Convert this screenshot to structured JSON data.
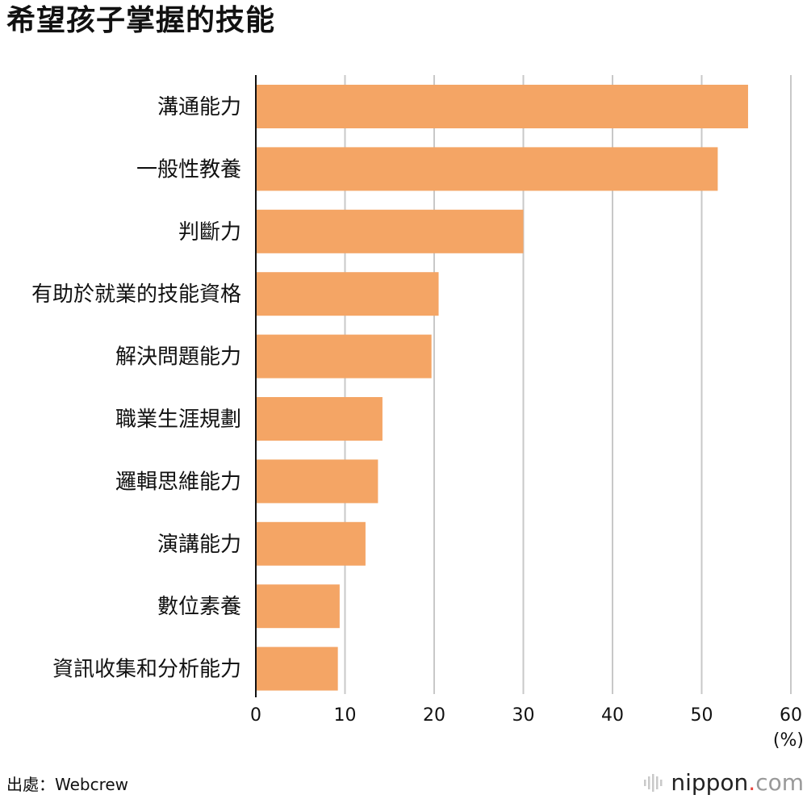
{
  "title": "希望孩子掌握的技能",
  "source": "出處：Webcrew",
  "brand": {
    "name": "nippon",
    "dot": ".",
    "tld": "com"
  },
  "colors": {
    "bar": "#F4A565",
    "grid": "#C8C8C8",
    "axis": "#111111"
  },
  "chart_data": {
    "type": "bar",
    "orientation": "horizontal",
    "title": "希望孩子掌握的技能",
    "categories": [
      "溝通能力",
      "一般性教養",
      "判斷力",
      "有助於就業的技能資格",
      "解決問題能力",
      "職業生涯規劃",
      "邏輯思維能力",
      "演講能力",
      "數位素養",
      "資訊收集和分析能力"
    ],
    "values": [
      55.2,
      51.8,
      30.0,
      20.5,
      19.7,
      14.2,
      13.7,
      12.3,
      9.4,
      9.2
    ],
    "xlim": [
      0,
      60
    ],
    "xticks": [
      0,
      10,
      20,
      30,
      40,
      50,
      60
    ],
    "xlabel": "(%)",
    "ylabel": "",
    "grid": true
  }
}
